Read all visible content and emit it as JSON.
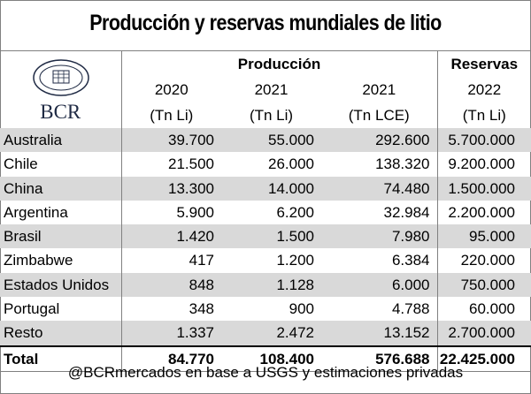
{
  "title": "Producción y reservas mundiales de litio",
  "logo": {
    "text": "BCR",
    "seal_text": "BOLSA DE COMERCIO DE ROSARIO"
  },
  "headers": {
    "produccion": "Producción",
    "reservas": "Reservas",
    "columns": [
      {
        "year": "2020",
        "unit": "(Tn Li)"
      },
      {
        "year": "2021",
        "unit": "(Tn Li)"
      },
      {
        "year": "2021",
        "unit": "(Tn LCE)"
      },
      {
        "year": "2022",
        "unit": "(Tn Li)"
      }
    ]
  },
  "rows": [
    {
      "country": "Australia",
      "values": [
        "39.700",
        "55.000",
        "292.600",
        "5.700.000"
      ]
    },
    {
      "country": "Chile",
      "values": [
        "21.500",
        "26.000",
        "138.320",
        "9.200.000"
      ]
    },
    {
      "country": "China",
      "values": [
        "13.300",
        "14.000",
        "74.480",
        "1.500.000"
      ]
    },
    {
      "country": "Argentina",
      "values": [
        "5.900",
        "6.200",
        "32.984",
        "2.200.000"
      ]
    },
    {
      "country": "Brasil",
      "values": [
        "1.420",
        "1.500",
        "7.980",
        "95.000"
      ]
    },
    {
      "country": "Zimbabwe",
      "values": [
        "417",
        "1.200",
        "6.384",
        "220.000"
      ]
    },
    {
      "country": "Estados Unidos",
      "values": [
        "848",
        "1.128",
        "6.000",
        "750.000"
      ]
    },
    {
      "country": "Portugal",
      "values": [
        "348",
        "900",
        "4.788",
        "60.000"
      ]
    },
    {
      "country": "Resto",
      "values": [
        "1.337",
        "2.472",
        "13.152",
        "2.700.000"
      ]
    }
  ],
  "total": {
    "label": "Total",
    "values": [
      "84.770",
      "108.400",
      "576.688",
      "22.425.000"
    ]
  },
  "footer": "@BCRmercados en base a USGS y estimaciones privadas",
  "colors": {
    "shade": "#d9d9d9",
    "border": "#808080",
    "logo": "#1f2a44"
  }
}
